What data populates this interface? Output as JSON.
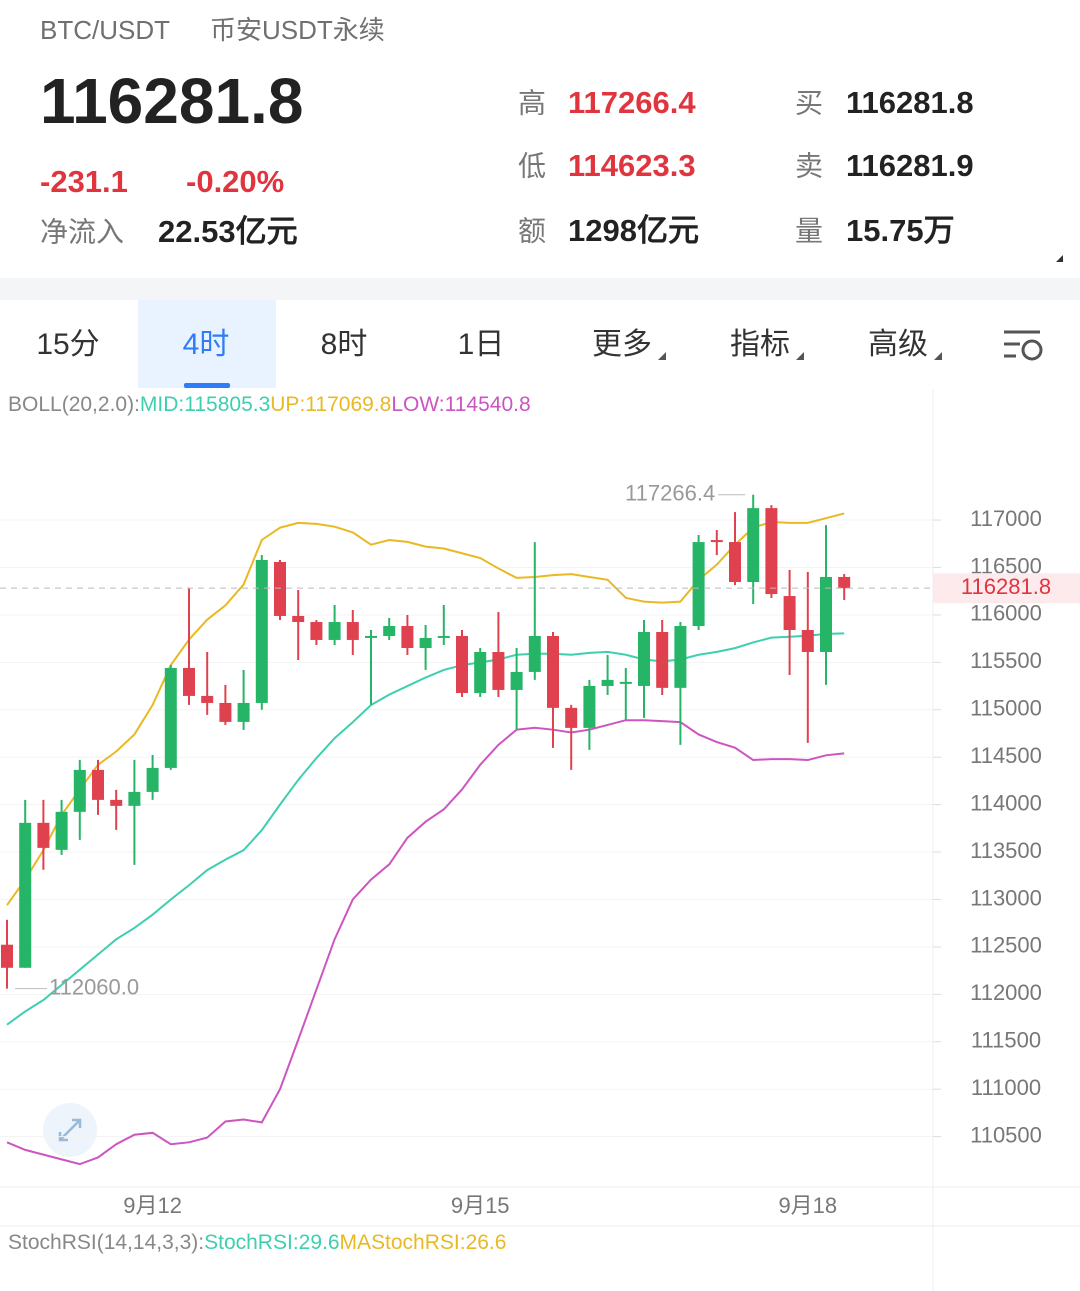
{
  "header": {
    "pair": "BTC/USDT",
    "market": "币安USDT永续",
    "price": "116281.8",
    "change": "-231.1",
    "change_pct": "-0.20%",
    "net_inflow_label": "净流入",
    "net_inflow": "22.53亿元",
    "stats": [
      {
        "label": "高",
        "value": "117266.4",
        "color": "#e0353f"
      },
      {
        "label": "低",
        "value": "114623.3",
        "color": "#e0353f"
      },
      {
        "label": "额",
        "value": "1298亿元",
        "color": "#222222"
      },
      {
        "label": "买",
        "value": "116281.8",
        "color": "#222222"
      },
      {
        "label": "卖",
        "value": "116281.9",
        "color": "#222222"
      },
      {
        "label": "量",
        "value": "15.75万",
        "color": "#222222"
      }
    ]
  },
  "tabs": {
    "items": [
      "15分",
      "4时",
      "8时",
      "1日",
      "更多",
      "指标",
      "高级"
    ],
    "active": 1
  },
  "chart_data": {
    "type": "candlestick",
    "indicator": "BOLL(20,2.0):",
    "categories": [
      null,
      null,
      null,
      null,
      null,
      null,
      null,
      null,
      "9月12",
      null,
      null,
      null,
      null,
      null,
      null,
      null,
      null,
      null,
      null,
      null,
      null,
      null,
      null,
      null,
      null,
      null,
      "9月15",
      null,
      null,
      null,
      null,
      null,
      null,
      null,
      null,
      null,
      null,
      null,
      null,
      null,
      null,
      null,
      null,
      null,
      "9月18",
      null,
      null
    ],
    "open": [
      112523,
      112280,
      113808,
      113523,
      113924,
      114366,
      114050,
      113987,
      114134,
      114387,
      115441,
      115146,
      115072,
      114872,
      115072,
      116558,
      115989,
      115925,
      115736,
      115925,
      115757,
      115778,
      115883,
      115651,
      115757,
      115778,
      115177,
      115609,
      115209,
      115399,
      115778,
      115020,
      114809,
      115251,
      115273,
      115251,
      115820,
      115231,
      115883,
      116789,
      116768,
      116347,
      117126,
      116199,
      115841,
      115609,
      116400
    ],
    "high": [
      112786,
      114050,
      114050,
      114050,
      114472,
      114472,
      114156,
      114472,
      114524,
      115472,
      116284,
      115609,
      115262,
      115420,
      116631,
      116579,
      116263,
      115946,
      116105,
      116052,
      115841,
      115968,
      115999,
      115894,
      116105,
      115841,
      115651,
      116031,
      115651,
      116768,
      115820,
      115051,
      115315,
      115578,
      115441,
      115946,
      115946,
      115925,
      116842,
      116895,
      117084,
      117266.4,
      117158,
      116473,
      116452,
      116947,
      116431
    ],
    "low": [
      112060,
      112280,
      113313,
      113470,
      113629,
      113892,
      113734,
      113365,
      114050,
      114366,
      115051,
      114946,
      114840,
      114788,
      115000,
      115946,
      115525,
      115683,
      115683,
      115578,
      115051,
      115736,
      115578,
      115420,
      115683,
      115135,
      115135,
      115135,
      114788,
      115315,
      114598,
      114366,
      114577,
      115156,
      114893,
      114914,
      115156,
      114630,
      115841,
      116631,
      116315,
      116115,
      116178,
      115367,
      114651,
      115262,
      116157
    ],
    "close": [
      112280,
      113808,
      113544,
      113924,
      114366,
      114050,
      113987,
      114134,
      114387,
      115441,
      115146,
      115072,
      114872,
      115072,
      116579,
      115989,
      115925,
      115736,
      115925,
      115736,
      115778,
      115883,
      115651,
      115757,
      115778,
      115177,
      115609,
      115209,
      115399,
      115778,
      115020,
      114809,
      115251,
      115315,
      115294,
      115820,
      115231,
      115883,
      116768,
      116768,
      116347,
      117126,
      116220,
      115841,
      115609,
      116400,
      116281.8
    ],
    "max_label": "117266.4",
    "min_label": "112060.0",
    "up_color": "#26b567",
    "down_color": "#e0414f",
    "series": [
      {
        "name": "MID:",
        "color": "#3ecfb0",
        "values": [
          111680,
          111820,
          111940,
          112100,
          112260,
          112420,
          112580,
          112700,
          112840,
          113000,
          113150,
          113310,
          113420,
          113520,
          113730,
          114000,
          114260,
          114490,
          114700,
          114870,
          115050,
          115160,
          115250,
          115340,
          115420,
          115470,
          115500,
          115530,
          115580,
          115590,
          115590,
          115580,
          115600,
          115610,
          115580,
          115530,
          115510,
          115530,
          115580,
          115610,
          115650,
          115710,
          115760,
          115770,
          115780,
          115800,
          115805.3
        ]
      },
      {
        "name": "UP:",
        "color": "#e8b923",
        "values": [
          112940,
          113210,
          113520,
          113890,
          114160,
          114420,
          114560,
          114740,
          115050,
          115470,
          115740,
          115950,
          116100,
          116320,
          116790,
          116920,
          116970,
          116960,
          116930,
          116870,
          116740,
          116790,
          116770,
          116720,
          116700,
          116650,
          116600,
          116490,
          116390,
          116400,
          116420,
          116430,
          116400,
          116370,
          116180,
          116140,
          116130,
          116140,
          116370,
          116530,
          116740,
          116920,
          116980,
          116970,
          116970,
          117020,
          117069.8
        ]
      },
      {
        "name": "LOW:",
        "color": "#cc55c0",
        "values": [
          110440,
          110360,
          110310,
          110260,
          110210,
          110280,
          110420,
          110520,
          110540,
          110420,
          110440,
          110490,
          110660,
          110680,
          110650,
          111000,
          111520,
          112050,
          112580,
          113000,
          113210,
          113370,
          113650,
          113820,
          113950,
          114160,
          114420,
          114630,
          114790,
          114810,
          114790,
          114760,
          114790,
          114840,
          114890,
          114890,
          114880,
          114870,
          114740,
          114660,
          114600,
          114470,
          114480,
          114480,
          114470,
          114520,
          114540.8
        ]
      }
    ],
    "ylim": [
      109990,
      118350
    ],
    "yticks": [
      117000,
      116500,
      116000,
      115500,
      115000,
      114500,
      114000,
      113500,
      113000,
      112500,
      112000,
      111500,
      111000,
      110500
    ],
    "grid": true
  },
  "stoch": {
    "label": "StochRSI(14,14,3,3):",
    "series": [
      {
        "name": "StochRSI:",
        "value": 29.6,
        "color": "#3ecfb0"
      },
      {
        "name": "MAStochRSI:",
        "value": 26.6,
        "color": "#e8b923"
      }
    ]
  }
}
